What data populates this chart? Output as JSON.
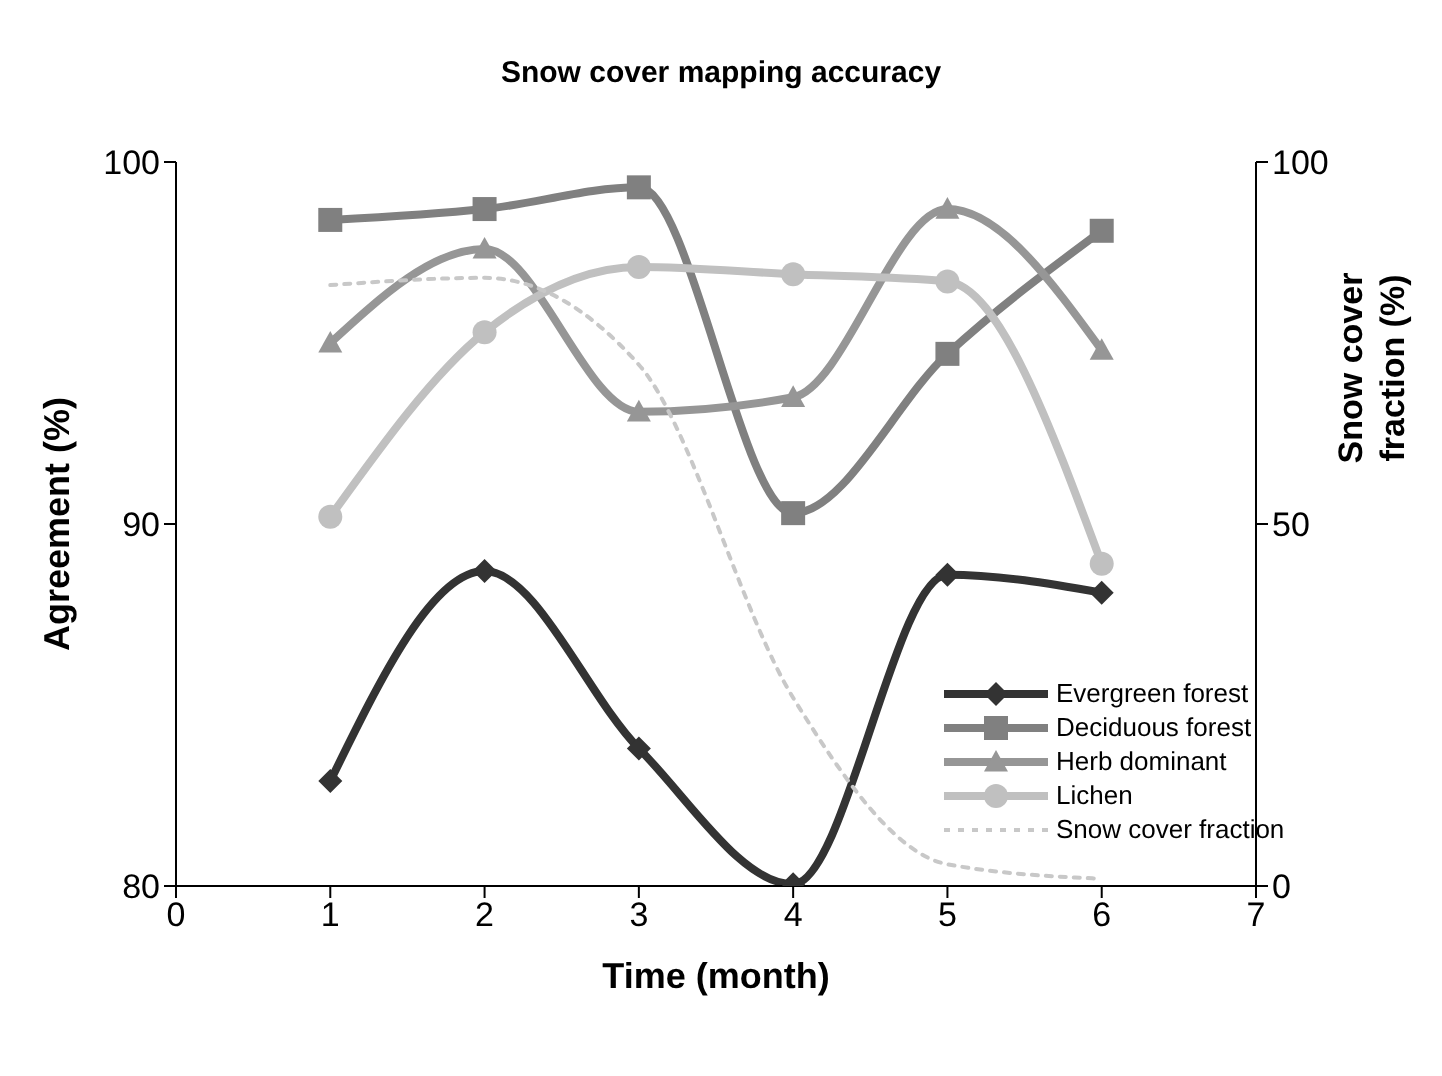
{
  "chart_data": {
    "type": "line",
    "title": "Snow cover mapping accuracy",
    "xlabel": "Time (month)",
    "ylabel": "Agreement (%)",
    "y2label": "Snow cover fraction (%)",
    "x": [
      1,
      2,
      3,
      4,
      5,
      6
    ],
    "series": [
      {
        "name": "Evergreen forest",
        "color": "#333333",
        "marker": "diamond",
        "values": [
          82.9,
          88.7,
          83.8,
          80.05,
          88.6,
          88.1
        ]
      },
      {
        "name": "Deciduous forest",
        "color": "#808080",
        "marker": "square",
        "values": [
          98.4,
          98.7,
          99.3,
          90.3,
          94.7,
          98.1
        ]
      },
      {
        "name": "Herb dominant",
        "color": "#969696",
        "marker": "triangle",
        "values": [
          95.0,
          97.6,
          93.1,
          93.5,
          98.7,
          94.8
        ]
      },
      {
        "name": "Lichen",
        "color": "#c0c0c0",
        "marker": "circle",
        "values": [
          90.2,
          95.3,
          97.1,
          96.9,
          96.7,
          88.9
        ]
      },
      {
        "name": "Snow cover fraction",
        "color": "#c8c8c8",
        "marker": "none",
        "line_style": "dotted",
        "axis": "y2",
        "values": [
          83,
          84,
          72,
          26,
          3,
          1
        ]
      }
    ],
    "xlim": [
      0,
      7
    ],
    "xticks": [
      0,
      1,
      2,
      3,
      4,
      5,
      6,
      7
    ],
    "ylim": [
      80,
      100
    ],
    "yticks": [
      80,
      90,
      100
    ],
    "y2lim": [
      0,
      100
    ],
    "y2ticks": [
      0,
      50,
      100
    ],
    "grid": false,
    "legend": "bottom right"
  }
}
